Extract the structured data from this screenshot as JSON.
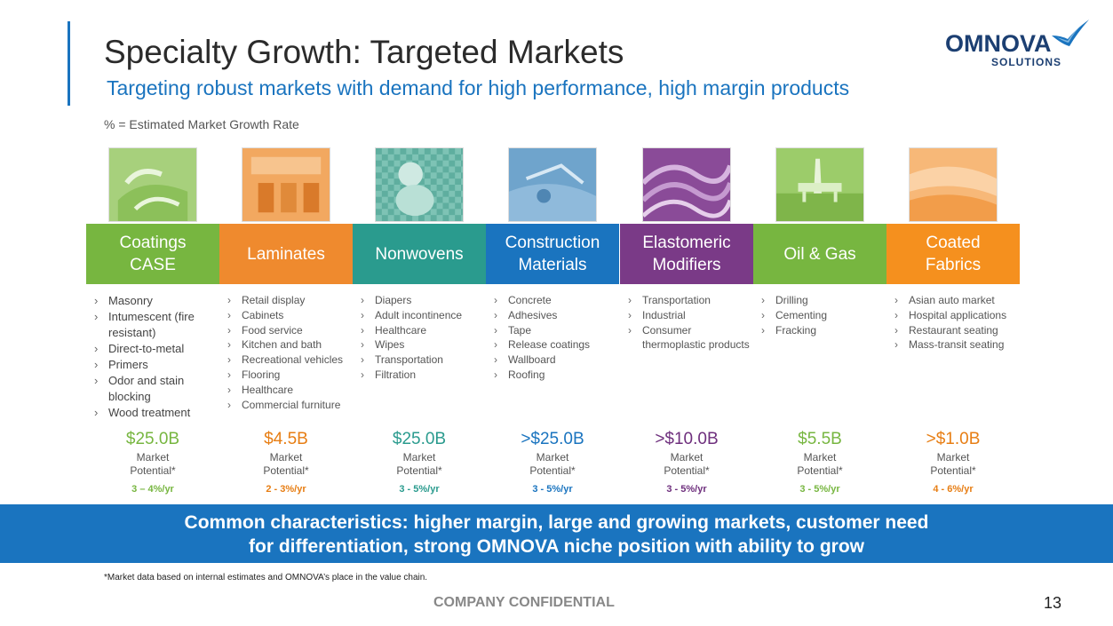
{
  "title": "Specialty Growth:  Targeted Markets",
  "subtitle": "Targeting robust markets with demand for high performance, high margin products",
  "growth_note": "% = Estimated Market Growth Rate",
  "logo": {
    "name": "OMNOVA",
    "tagline": "SOLUTIONS"
  },
  "segments": [
    {
      "name": "Coatings\nCASE",
      "header_color": "#77b640",
      "accent_color": "#77b640",
      "icon": "coatings-photo",
      "items": [
        "Masonry",
        "Intumescent (fire resistant)",
        "Direct-to-metal",
        "Primers",
        "Odor and stain blocking",
        "Wood treatment"
      ],
      "amount": "$25.0B",
      "potential": "Market\nPotential*",
      "rate": "3 – 4%/yr"
    },
    {
      "name": "Laminates",
      "header_color": "#ef8a2e",
      "accent_color": "#e77e14",
      "icon": "laminates-photo",
      "items": [
        "Retail display",
        "Cabinets",
        "Food service",
        "Kitchen and bath",
        "Recreational vehicles",
        "Flooring",
        "Healthcare",
        "Commercial furniture"
      ],
      "amount": "$4.5B",
      "potential": "Market\nPotential*",
      "rate": "2 - 3%/yr"
    },
    {
      "name": "Nonwovens",
      "header_color": "#2a9b8e",
      "accent_color": "#2a9b8e",
      "icon": "nonwovens-photo",
      "items": [
        "Diapers",
        "Adult incontinence",
        "Healthcare",
        "Wipes",
        "Transportation",
        "Filtration"
      ],
      "amount": "$25.0B",
      "potential": "Market\nPotential*",
      "rate": "3 - 5%/yr"
    },
    {
      "name": "Construction\nMaterials",
      "header_color": "#1a74bf",
      "accent_color": "#1a74bf",
      "icon": "construction-photo",
      "items": [
        "Concrete",
        "Adhesives",
        "Tape",
        "Release coatings",
        "Wallboard",
        "Roofing"
      ],
      "amount": ">$25.0B",
      "potential": "Market\nPotential*",
      "rate": "3 - 5%/yr"
    },
    {
      "name": "Elastomeric\nModifiers",
      "header_color": "#7a3a87",
      "accent_color": "#6e2f7d",
      "icon": "elastomeric-photo",
      "items": [
        "Transportation",
        "Industrial",
        "Consumer thermoplastic products"
      ],
      "amount": ">$10.0B",
      "potential": "Market\nPotential*",
      "rate": "3 - 5%/yr"
    },
    {
      "name": "Oil & Gas",
      "header_color": "#77b640",
      "accent_color": "#77b640",
      "icon": "oil-gas-photo",
      "items": [
        "Drilling",
        "Cementing",
        "Fracking"
      ],
      "amount": "$5.5B",
      "potential": "Market\nPotential*",
      "rate": "3 - 5%/yr"
    },
    {
      "name": "Coated\nFabrics",
      "header_color": "#f5901e",
      "accent_color": "#e77e14",
      "icon": "coated-fabrics-photo",
      "items": [
        "Asian auto market",
        "Hospital applications",
        "Restaurant seating",
        "Mass-transit seating"
      ],
      "amount": ">$1.0B",
      "potential": "Market\nPotential*",
      "rate": "4 - 6%/yr"
    }
  ],
  "banner": {
    "line1": "Common characteristics:  higher margin, large and growing markets, customer need",
    "line2": "for differentiation, strong OMNOVA niche position with ability to grow"
  },
  "footnote": "*Market data based on internal estimates and OMNOVA’s place in the value chain.",
  "confidential": "COMPANY CONFIDENTIAL",
  "page_number": "13"
}
